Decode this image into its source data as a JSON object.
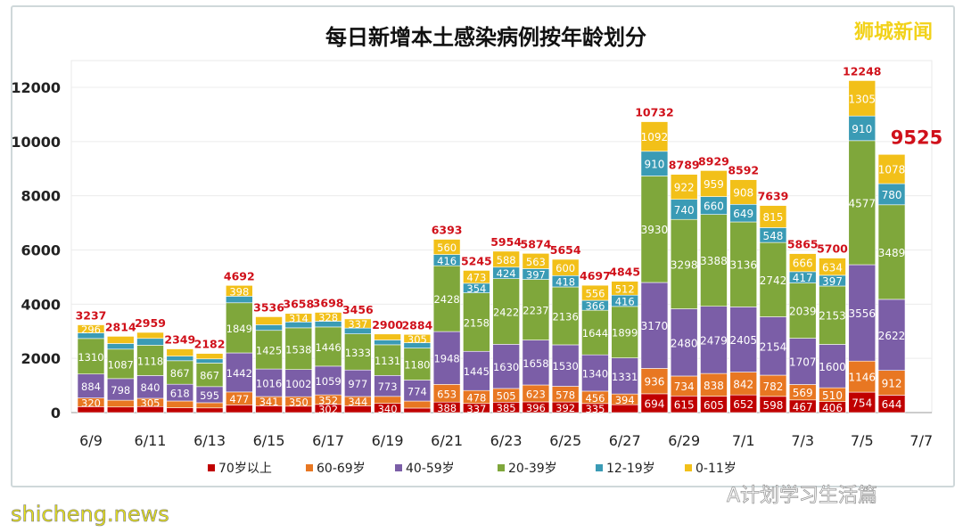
{
  "watermarks": {
    "top_right": "狮城新闻",
    "bottom_left": "shicheng.news",
    "bottom_right": "A计划学习生活篇"
  },
  "chart_data": {
    "type": "bar",
    "stacked": true,
    "title": "每日新增本土感染病例按年龄划分",
    "xlabel": "",
    "ylabel": "",
    "ylim": [
      0,
      12000
    ],
    "yticks": [
      0,
      2000,
      4000,
      6000,
      8000,
      10000,
      12000
    ],
    "grid": "horizontal",
    "legend": "bottom",
    "categories": [
      "6/9",
      "6/10",
      "6/11",
      "6/12",
      "6/13",
      "6/14",
      "6/15",
      "6/16",
      "6/17",
      "6/18",
      "6/19",
      "6/20",
      "6/21",
      "6/22",
      "6/23",
      "6/24",
      "6/25",
      "6/26",
      "6/27",
      "6/28",
      "6/29",
      "6/30",
      "7/1",
      "7/2",
      "7/3",
      "7/4",
      "7/5",
      "7/6"
    ],
    "xtick_labels": [
      "6/9",
      "6/11",
      "6/13",
      "6/15",
      "6/17",
      "6/19",
      "6/21",
      "6/23",
      "6/25",
      "6/27",
      "6/29",
      "7/1",
      "7/3",
      "7/5",
      "7/7"
    ],
    "totals": [
      3237,
      2814,
      2959,
      2349,
      2182,
      4692,
      3536,
      3658,
      3698,
      3456,
      2900,
      2884,
      6393,
      5245,
      5954,
      5874,
      5654,
      4697,
      4845,
      10732,
      8789,
      8929,
      8592,
      7639,
      5865,
      5700,
      12248,
      9525
    ],
    "series": [
      {
        "name": "70岁以上",
        "color": "#c00000",
        "values": [
          219,
          206,
          222,
          178,
          172,
          283,
          251,
          237,
          302,
          250,
          340,
          166,
          388,
          337,
          385,
          396,
          392,
          335,
          293,
          694,
          615,
          605,
          652,
          598,
          467,
          406,
          754,
          644
        ]
      },
      {
        "name": "60-69岁",
        "color": "#e87722",
        "values": [
          320,
          250,
          305,
          250,
          192,
          477,
          341,
          350,
          352,
          344,
          258,
          260,
          653,
          478,
          505,
          623,
          578,
          456,
          394,
          936,
          734,
          838,
          842,
          782,
          569,
          510,
          1146,
          912
        ]
      },
      {
        "name": "40-59岁",
        "color": "#7b5ea7",
        "values": [
          884,
          798,
          840,
          618,
          595,
          1442,
          1016,
          1002,
          1059,
          977,
          773,
          774,
          1948,
          1445,
          1630,
          1658,
          1530,
          1340,
          1331,
          3170,
          2480,
          2479,
          2405,
          2154,
          1707,
          1600,
          3556,
          2622
        ]
      },
      {
        "name": "20-39岁",
        "color": "#7fa73b",
        "values": [
          1310,
          1087,
          1118,
          867,
          867,
          1849,
          1425,
          1538,
          1446,
          1333,
          1131,
          1180,
          2428,
          2158,
          2422,
          2237,
          2136,
          1644,
          1899,
          3930,
          3298,
          3388,
          3136,
          2742,
          2039,
          2153,
          4577,
          3489
        ]
      },
      {
        "name": "12-19岁",
        "color": "#3a9bb5",
        "values": [
          208,
          208,
          252,
          170,
          155,
          243,
          208,
          217,
          211,
          215,
          177,
          199,
          416,
          354,
          424,
          397,
          418,
          366,
          416,
          910,
          740,
          660,
          649,
          548,
          417,
          397,
          910,
          780
        ]
      },
      {
        "name": "0-11岁",
        "color": "#f2c019",
        "values": [
          296,
          265,
          222,
          266,
          201,
          398,
          295,
          314,
          328,
          337,
          221,
          305,
          560,
          473,
          588,
          563,
          600,
          556,
          512,
          1092,
          922,
          959,
          908,
          815,
          666,
          634,
          1305,
          1078
        ]
      }
    ]
  }
}
